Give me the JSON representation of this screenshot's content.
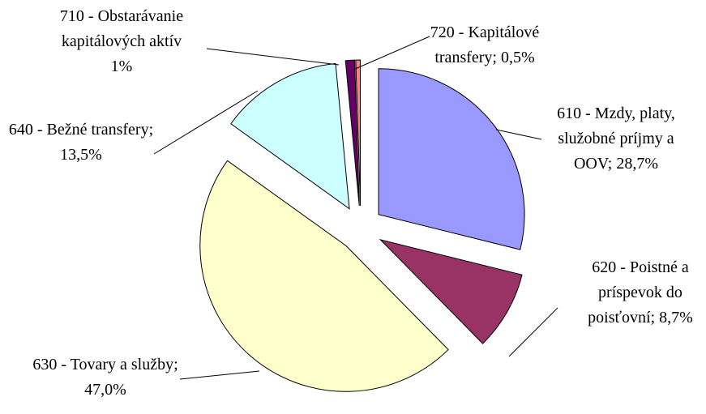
{
  "chart_data": {
    "type": "pie",
    "categories": [
      "610 - Mzdy, platy, služobné príjmy a OOV;",
      "620 - Poistné a príspevok do poisťovní;",
      "630 - Tovary a služby;",
      "640 - Bežné transfery;",
      "710 - Obstarávanie kapitálových aktív",
      "720 - Kapitálové transfery;"
    ],
    "values": [
      28.7,
      8.7,
      47.0,
      13.5,
      1,
      0.5
    ],
    "value_labels": [
      "28,7%",
      "8,7%",
      "47,0%",
      "13,5%",
      "1%",
      "0,5%"
    ],
    "colors": [
      "#9999ff",
      "#993366",
      "#ffffcc",
      "#ccffff",
      "#660066",
      "#ff8080"
    ]
  }
}
